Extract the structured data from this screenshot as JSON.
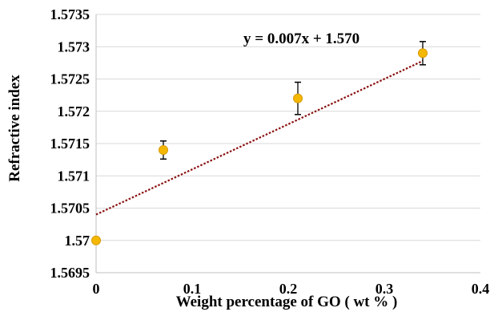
{
  "chart_data": {
    "type": "scatter",
    "xlabel": "Weight percentage of GO ( wt % )",
    "ylabel": "Refractive index",
    "xlim": [
      0,
      0.4
    ],
    "ylim": [
      1.5695,
      1.5735
    ],
    "x_ticks": [
      "0",
      "0.1",
      "0.2",
      "0.3",
      "0.4"
    ],
    "y_ticks": [
      "1.5695",
      "1.57",
      "1.5705",
      "1.571",
      "1.5715",
      "1.572",
      "1.5725",
      "1.573",
      "1.5735"
    ],
    "grid": "horizontal",
    "points": [
      {
        "x": 0.0,
        "y": 1.57,
        "err": 0
      },
      {
        "x": 0.07,
        "y": 1.5714,
        "err": 0.00014
      },
      {
        "x": 0.21,
        "y": 1.5722,
        "err": 0.00025
      },
      {
        "x": 0.34,
        "y": 1.5729,
        "err": 0.00018
      }
    ],
    "trendline": {
      "label": "y = 0.007x + 1.570",
      "slope": 0.007,
      "intercept": 1.5704,
      "x_range": [
        0,
        0.34
      ],
      "color": "#8b1010"
    },
    "marker_color": "#f5b800",
    "marker_edge": "#d89a00"
  }
}
